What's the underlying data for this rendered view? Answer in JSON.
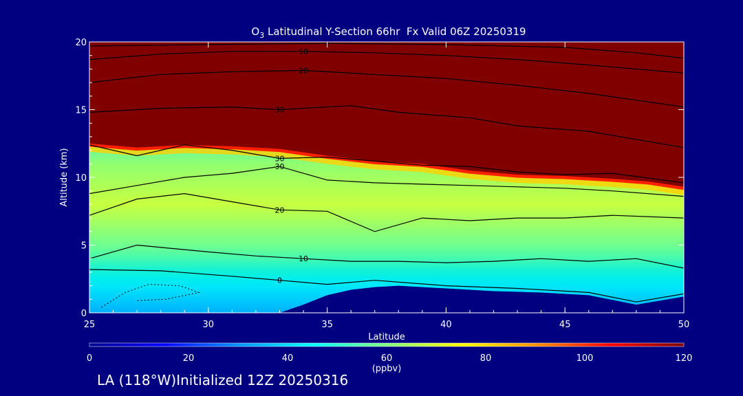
{
  "title": {
    "prefix": "O",
    "subscript": "3",
    "rest": " Latitudinal Y-Section 66hr  Fx Valid 06Z 20250319"
  },
  "footer": "LA (118°W)Initialized 12Z 20250316",
  "colors": {
    "background": "#000080",
    "stratosphere": "#800000",
    "ground": "#000080",
    "contour": "#000000",
    "text": "#ffffff"
  },
  "chart_data": {
    "type": "heatmap",
    "xlabel": "Latitude",
    "ylabel": "Altitude (km)",
    "xlim": [
      25,
      50
    ],
    "ylim": [
      0,
      20
    ],
    "xticks": [
      25,
      30,
      35,
      40,
      45,
      50
    ],
    "yticks": [
      0,
      5,
      10,
      15,
      20
    ],
    "colorbar": {
      "ticks": [
        0,
        20,
        40,
        60,
        80,
        100,
        120
      ],
      "label": "(ppbv)",
      "range": [
        0,
        120
      ],
      "colors": [
        "#000090",
        "#0000ff",
        "#0090ff",
        "#00ffff",
        "#80ff80",
        "#ffff00",
        "#ff9000",
        "#ff0000",
        "#800000"
      ]
    },
    "tropopause_km": [
      [
        25,
        12.5
      ],
      [
        27,
        12.2
      ],
      [
        29,
        12.4
      ],
      [
        31,
        12.3
      ],
      [
        33,
        12.1
      ],
      [
        35,
        11.6
      ],
      [
        37,
        11.2
      ],
      [
        39,
        11.0
      ],
      [
        41,
        10.5
      ],
      [
        43,
        10.2
      ],
      [
        45,
        10.1
      ],
      [
        47,
        9.9
      ],
      [
        48.5,
        9.7
      ],
      [
        50,
        9.3
      ]
    ],
    "surface_km": [
      [
        25,
        0
      ],
      [
        33,
        0
      ],
      [
        34,
        0.6
      ],
      [
        35,
        1.3
      ],
      [
        36,
        1.7
      ],
      [
        37,
        1.9
      ],
      [
        38,
        2.0
      ],
      [
        40,
        1.8
      ],
      [
        42,
        1.6
      ],
      [
        44,
        1.5
      ],
      [
        46,
        1.3
      ],
      [
        48,
        0.6
      ],
      [
        50,
        1.2
      ]
    ],
    "contours": [
      {
        "label": "0",
        "points": [
          [
            25,
            3.2
          ],
          [
            28,
            3.1
          ],
          [
            31,
            2.7
          ],
          [
            33,
            2.4
          ],
          [
            35,
            2.1
          ],
          [
            37,
            2.4
          ],
          [
            40,
            2.0
          ],
          [
            43,
            1.8
          ],
          [
            46,
            1.5
          ],
          [
            48,
            0.8
          ],
          [
            50,
            1.4
          ]
        ]
      },
      {
        "label": "10",
        "points": [
          [
            25,
            4.0
          ],
          [
            27,
            5.0
          ],
          [
            30,
            4.5
          ],
          [
            32,
            4.2
          ],
          [
            34,
            4.0
          ],
          [
            36,
            3.8
          ],
          [
            38,
            3.8
          ],
          [
            40,
            3.7
          ],
          [
            42,
            3.8
          ],
          [
            44,
            4.0
          ],
          [
            46,
            3.8
          ],
          [
            48,
            4.0
          ],
          [
            50,
            3.3
          ]
        ]
      },
      {
        "label": "20",
        "points": [
          [
            25,
            7.2
          ],
          [
            27,
            8.4
          ],
          [
            29,
            8.8
          ],
          [
            31,
            8.2
          ],
          [
            33,
            7.6
          ],
          [
            35,
            7.5
          ],
          [
            37,
            6.0
          ],
          [
            39,
            7.0
          ],
          [
            41,
            6.8
          ],
          [
            43,
            7.0
          ],
          [
            45,
            7.0
          ],
          [
            47,
            7.2
          ],
          [
            50,
            7.0
          ]
        ]
      },
      {
        "label": "30",
        "points": [
          [
            25,
            8.8
          ],
          [
            27,
            9.4
          ],
          [
            29,
            10.0
          ],
          [
            31,
            10.3
          ],
          [
            33,
            10.8
          ],
          [
            35,
            9.8
          ],
          [
            37,
            9.6
          ],
          [
            39,
            9.5
          ],
          [
            41,
            9.4
          ],
          [
            43,
            9.3
          ],
          [
            45,
            9.2
          ],
          [
            47,
            9.0
          ],
          [
            50,
            8.6
          ]
        ]
      },
      {
        "label": "30",
        "points": [
          [
            25,
            12.4
          ],
          [
            27,
            11.6
          ],
          [
            29,
            12.4
          ],
          [
            31,
            12.0
          ],
          [
            33,
            11.4
          ],
          [
            35,
            11.5
          ],
          [
            37,
            11.2
          ],
          [
            39,
            10.9
          ],
          [
            41,
            10.8
          ],
          [
            43,
            10.4
          ],
          [
            45,
            10.2
          ],
          [
            47,
            10.3
          ],
          [
            50,
            9.6
          ]
        ]
      },
      {
        "label": "30",
        "points": [
          [
            25,
            14.8
          ],
          [
            28,
            15.1
          ],
          [
            31,
            15.2
          ],
          [
            33,
            15.0
          ],
          [
            36,
            15.3
          ],
          [
            38,
            14.8
          ],
          [
            41,
            14.4
          ],
          [
            43,
            13.8
          ],
          [
            46,
            13.4
          ],
          [
            48,
            12.8
          ],
          [
            50,
            12.2
          ]
        ]
      },
      {
        "label": "20",
        "points": [
          [
            25,
            17.0
          ],
          [
            28,
            17.6
          ],
          [
            31,
            17.8
          ],
          [
            34,
            17.9
          ],
          [
            37,
            17.6
          ],
          [
            40,
            17.3
          ],
          [
            43,
            16.8
          ],
          [
            46,
            16.2
          ],
          [
            48,
            15.7
          ],
          [
            50,
            15.2
          ]
        ]
      },
      {
        "label": "10",
        "points": [
          [
            25,
            18.7
          ],
          [
            28,
            19.1
          ],
          [
            31,
            19.3
          ],
          [
            34,
            19.3
          ],
          [
            37,
            19.2
          ],
          [
            40,
            19.0
          ],
          [
            43,
            18.7
          ],
          [
            46,
            18.3
          ],
          [
            48,
            18.0
          ],
          [
            50,
            17.7
          ]
        ]
      },
      {
        "label": "0",
        "points": [
          [
            25,
            19.7
          ],
          [
            30,
            19.8
          ],
          [
            35,
            19.9
          ],
          [
            40,
            19.8
          ],
          [
            45,
            19.6
          ],
          [
            48,
            19.2
          ],
          [
            50,
            18.8
          ]
        ]
      }
    ],
    "dotted_contours": [
      {
        "points": [
          [
            25.5,
            0.4
          ],
          [
            26.5,
            1.5
          ],
          [
            27.5,
            2.1
          ],
          [
            28.8,
            2.0
          ],
          [
            29.6,
            1.5
          ],
          [
            28.2,
            1.0
          ],
          [
            27,
            0.9
          ]
        ]
      }
    ]
  }
}
